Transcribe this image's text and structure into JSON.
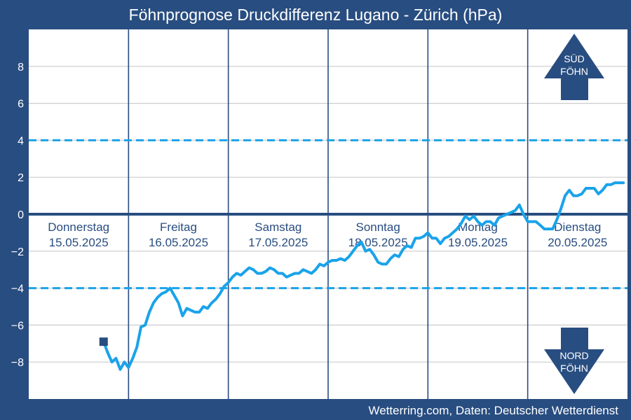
{
  "title": "Föhnprognose Druckdifferenz Lugano - Zürich (hPa)",
  "footer": "Wetterring.com, Daten: Deutscher Wetterdienst",
  "colors": {
    "background": "#284d80",
    "plot": "#ffffff",
    "line": "#1aa3ea",
    "threshold": "#1aa3ea",
    "zero": "#284d80",
    "arrow": "#284d80",
    "grid": "#cccccc"
  },
  "arrows": {
    "sued": [
      "SÜD",
      "FÖHN"
    ],
    "nord": [
      "NORD",
      "FÖHN"
    ]
  },
  "chart_data": {
    "type": "line",
    "title": "Föhnprognose Druckdifferenz Lugano - Zürich (hPa)",
    "xlabel": "",
    "ylabel": "",
    "ylim": [
      -10,
      10
    ],
    "yticks": [
      -8,
      -6,
      -4,
      -2,
      0,
      2,
      4,
      6,
      8
    ],
    "ytick_labels": [
      "−8",
      "−6",
      "−4",
      "−2",
      "0",
      "2",
      "4",
      "6",
      "8"
    ],
    "grid": true,
    "thresholds": [
      4,
      -4
    ],
    "x_unit": "hours since 15.05.2025 00:00",
    "x_range": [
      0,
      144
    ],
    "days": [
      {
        "name": "Donnerstag",
        "date": "15.05.2025"
      },
      {
        "name": "Freitag",
        "date": "16.05.2025"
      },
      {
        "name": "Samstag",
        "date": "17.05.2025"
      },
      {
        "name": "Sonntag",
        "date": "18.05.2025"
      },
      {
        "name": "Montag",
        "date": "19.05.2025"
      },
      {
        "name": "Dienstag",
        "date": "20.05.2025"
      }
    ],
    "start_marker": {
      "x": 18,
      "y": -6.9
    },
    "series": [
      {
        "points": [
          [
            18,
            -6.9
          ],
          [
            19,
            -7.5
          ],
          [
            20,
            -8.0
          ],
          [
            21,
            -7.8
          ],
          [
            22,
            -8.4
          ],
          [
            23,
            -8.0
          ],
          [
            24,
            -8.3
          ],
          [
            25,
            -7.8
          ],
          [
            26,
            -7.2
          ],
          [
            27,
            -6.1
          ],
          [
            28,
            -6.0
          ],
          [
            29,
            -5.3
          ],
          [
            30,
            -4.8
          ],
          [
            31,
            -4.5
          ],
          [
            32,
            -4.3
          ],
          [
            33,
            -4.2
          ],
          [
            34,
            -4.0
          ],
          [
            35,
            -4.4
          ],
          [
            36,
            -4.8
          ],
          [
            37,
            -5.5
          ],
          [
            38,
            -5.1
          ],
          [
            39,
            -5.2
          ],
          [
            40,
            -5.3
          ],
          [
            41,
            -5.3
          ],
          [
            42,
            -5.0
          ],
          [
            43,
            -5.1
          ],
          [
            44,
            -4.8
          ],
          [
            45,
            -4.6
          ],
          [
            46,
            -4.3
          ],
          [
            47,
            -3.9
          ],
          [
            48,
            -3.7
          ],
          [
            49,
            -3.4
          ],
          [
            50,
            -3.2
          ],
          [
            51,
            -3.3
          ],
          [
            52,
            -3.1
          ],
          [
            53,
            -2.9
          ],
          [
            54,
            -3.0
          ],
          [
            55,
            -3.2
          ],
          [
            56,
            -3.2
          ],
          [
            57,
            -3.1
          ],
          [
            58,
            -2.9
          ],
          [
            59,
            -3.0
          ],
          [
            60,
            -3.2
          ],
          [
            61,
            -3.2
          ],
          [
            62,
            -3.4
          ],
          [
            63,
            -3.3
          ],
          [
            64,
            -3.2
          ],
          [
            65,
            -3.2
          ],
          [
            66,
            -3.0
          ],
          [
            67,
            -3.1
          ],
          [
            68,
            -3.2
          ],
          [
            69,
            -3.0
          ],
          [
            70,
            -2.7
          ],
          [
            71,
            -2.8
          ],
          [
            72,
            -2.6
          ],
          [
            73,
            -2.5
          ],
          [
            74,
            -2.5
          ],
          [
            75,
            -2.4
          ],
          [
            76,
            -2.5
          ],
          [
            77,
            -2.3
          ],
          [
            78,
            -2.0
          ],
          [
            79,
            -1.7
          ],
          [
            80,
            -1.5
          ],
          [
            81,
            -2.0
          ],
          [
            82,
            -1.9
          ],
          [
            83,
            -2.2
          ],
          [
            84,
            -2.6
          ],
          [
            85,
            -2.7
          ],
          [
            86,
            -2.7
          ],
          [
            87,
            -2.4
          ],
          [
            88,
            -2.2
          ],
          [
            89,
            -2.3
          ],
          [
            90,
            -1.9
          ],
          [
            91,
            -1.7
          ],
          [
            92,
            -1.8
          ],
          [
            93,
            -1.3
          ],
          [
            94,
            -1.3
          ],
          [
            95,
            -1.2
          ],
          [
            96,
            -1.0
          ],
          [
            97,
            -1.3
          ],
          [
            98,
            -1.3
          ],
          [
            99,
            -1.6
          ],
          [
            100,
            -1.3
          ],
          [
            101,
            -1.2
          ],
          [
            102,
            -1.0
          ],
          [
            103,
            -0.8
          ],
          [
            104,
            -0.5
          ],
          [
            105,
            -0.1
          ],
          [
            106,
            -0.3
          ],
          [
            107,
            -0.1
          ],
          [
            108,
            -0.4
          ],
          [
            109,
            -0.6
          ],
          [
            110,
            -0.4
          ],
          [
            111,
            -0.4
          ],
          [
            112,
            -0.6
          ],
          [
            113,
            -0.2
          ],
          [
            114,
            -0.1
          ],
          [
            115,
            0.0
          ],
          [
            116,
            0.1
          ],
          [
            117,
            0.2
          ],
          [
            118,
            0.5
          ],
          [
            119,
            0.0
          ],
          [
            120,
            -0.4
          ],
          [
            121,
            -0.4
          ],
          [
            122,
            -0.4
          ],
          [
            123,
            -0.6
          ],
          [
            124,
            -0.8
          ],
          [
            125,
            -0.8
          ],
          [
            126,
            -0.8
          ],
          [
            127,
            -0.3
          ],
          [
            128,
            0.3
          ],
          [
            129,
            1.0
          ],
          [
            130,
            1.3
          ],
          [
            131,
            1.0
          ],
          [
            132,
            1.0
          ],
          [
            133,
            1.1
          ],
          [
            134,
            1.4
          ],
          [
            135,
            1.4
          ],
          [
            136,
            1.4
          ],
          [
            137,
            1.1
          ],
          [
            138,
            1.3
          ],
          [
            139,
            1.6
          ],
          [
            140,
            1.6
          ],
          [
            141,
            1.7
          ],
          [
            142,
            1.7
          ],
          [
            143,
            1.7
          ]
        ]
      }
    ]
  }
}
